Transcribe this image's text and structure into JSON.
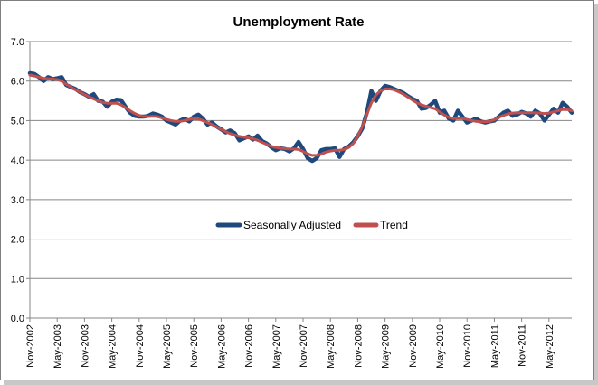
{
  "chart_data": {
    "type": "line",
    "title": "Unemployment Rate",
    "xlabel": "",
    "ylabel": "",
    "ylim": [
      0,
      7
    ],
    "y_ticks": [
      "0.0",
      "1.0",
      "2.0",
      "3.0",
      "4.0",
      "5.0",
      "6.0",
      "7.0"
    ],
    "x_tick_labels": [
      "Nov-2002",
      "May-2003",
      "Nov-2003",
      "May-2004",
      "Nov-2004",
      "May-2005",
      "Nov-2005",
      "May-2006",
      "Nov-2006",
      "May-2007",
      "Nov-2007",
      "May-2008",
      "Nov-2008",
      "May-2009",
      "Nov-2009",
      "May-2010",
      "Nov-2010",
      "May-2011",
      "Nov-2011",
      "May-2012"
    ],
    "grid": "horizontal",
    "legend_position": "center",
    "series": [
      {
        "name": "Seasonally Adjusted",
        "color": "#1f497d",
        "values": [
          6.2,
          6.18,
          6.1,
          6.0,
          6.1,
          6.05,
          6.07,
          6.1,
          5.9,
          5.85,
          5.8,
          5.72,
          5.67,
          5.6,
          5.67,
          5.5,
          5.48,
          5.35,
          5.48,
          5.53,
          5.52,
          5.35,
          5.2,
          5.12,
          5.1,
          5.1,
          5.12,
          5.18,
          5.15,
          5.1,
          5.0,
          4.95,
          4.9,
          5.0,
          5.05,
          4.98,
          5.1,
          5.15,
          5.05,
          4.9,
          4.95,
          4.85,
          4.78,
          4.7,
          4.75,
          4.68,
          4.5,
          4.55,
          4.6,
          4.52,
          4.62,
          4.48,
          4.42,
          4.33,
          4.25,
          4.3,
          4.28,
          4.22,
          4.3,
          4.46,
          4.28,
          4.05,
          3.98,
          4.05,
          4.25,
          4.28,
          4.28,
          4.3,
          4.08,
          4.28,
          4.34,
          4.45,
          4.6,
          4.8,
          5.2,
          5.75,
          5.5,
          5.75,
          5.88,
          5.85,
          5.8,
          5.75,
          5.7,
          5.62,
          5.55,
          5.5,
          5.3,
          5.32,
          5.4,
          5.5,
          5.2,
          5.25,
          5.05,
          5.0,
          5.25,
          5.1,
          4.95,
          5.0,
          5.05,
          4.98,
          4.95,
          4.98,
          5.0,
          5.1,
          5.2,
          5.25,
          5.12,
          5.15,
          5.22,
          5.18,
          5.1,
          5.25,
          5.18,
          5.0,
          5.15,
          5.3,
          5.2,
          5.45,
          5.35,
          5.2
        ]
      },
      {
        "name": "Trend",
        "color": "#c0504d",
        "values": [
          6.15,
          6.13,
          6.1,
          6.07,
          6.06,
          6.05,
          6.04,
          6.0,
          5.92,
          5.85,
          5.78,
          5.72,
          5.66,
          5.6,
          5.55,
          5.5,
          5.46,
          5.44,
          5.44,
          5.44,
          5.4,
          5.33,
          5.25,
          5.18,
          5.13,
          5.1,
          5.1,
          5.11,
          5.1,
          5.07,
          5.03,
          5.0,
          4.98,
          4.98,
          5.0,
          5.03,
          5.05,
          5.04,
          5.0,
          4.95,
          4.9,
          4.84,
          4.78,
          4.72,
          4.67,
          4.63,
          4.6,
          4.58,
          4.56,
          4.54,
          4.5,
          4.45,
          4.4,
          4.35,
          4.32,
          4.3,
          4.29,
          4.28,
          4.28,
          4.27,
          4.22,
          4.16,
          4.12,
          4.12,
          4.15,
          4.2,
          4.23,
          4.25,
          4.25,
          4.27,
          4.32,
          4.42,
          4.6,
          4.85,
          5.15,
          5.45,
          5.65,
          5.75,
          5.8,
          5.8,
          5.78,
          5.73,
          5.67,
          5.6,
          5.52,
          5.45,
          5.4,
          5.36,
          5.33,
          5.3,
          5.22,
          5.14,
          5.08,
          5.05,
          5.05,
          5.05,
          5.03,
          5.0,
          4.98,
          4.97,
          4.97,
          4.98,
          5.02,
          5.08,
          5.13,
          5.17,
          5.19,
          5.2,
          5.2,
          5.2,
          5.2,
          5.2,
          5.19,
          5.18,
          5.19,
          5.22,
          5.25,
          5.28,
          5.28,
          5.25
        ]
      }
    ]
  }
}
